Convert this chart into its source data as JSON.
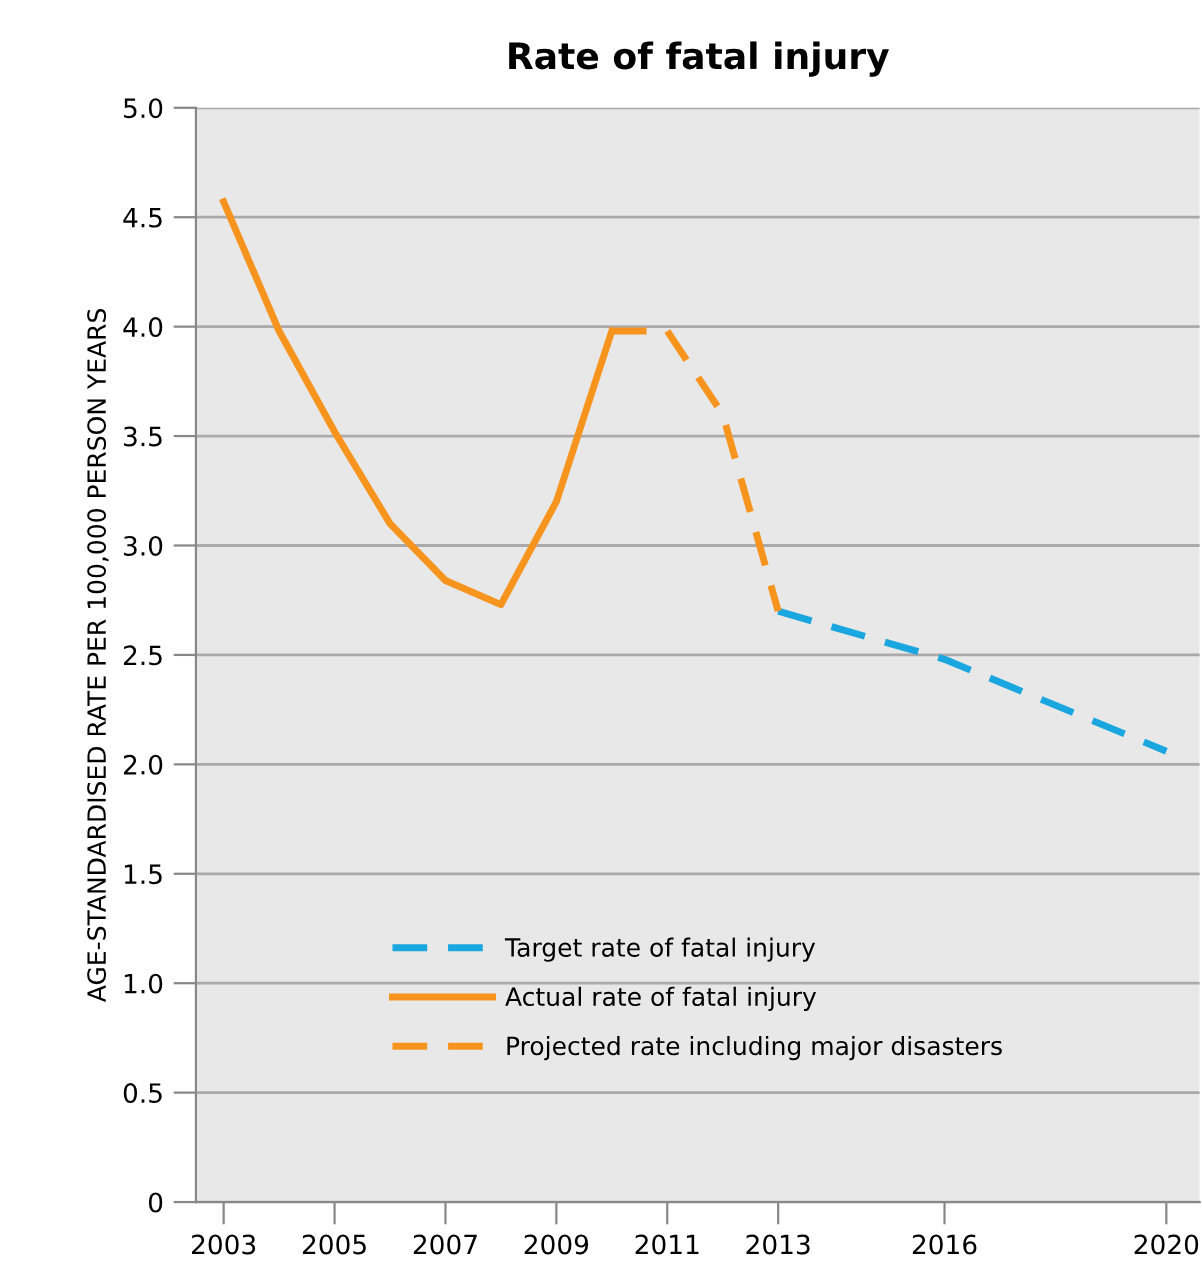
{
  "chart_data": {
    "type": "line",
    "title": "Rate of fatal injury",
    "ylabel": "AGE-STANDARDISED RATE PER 100,000 PERSON YEARS",
    "xlim": [
      2002.5,
      2020.6
    ],
    "xticks": [
      2003,
      2005,
      2007,
      2009,
      2011,
      2013,
      2016,
      2020
    ],
    "ylim": [
      0,
      5
    ],
    "yticks": [
      {
        "value": 0,
        "label": "0"
      },
      {
        "value": 0.5,
        "label": "0.5"
      },
      {
        "value": 1,
        "label": "1.0"
      },
      {
        "value": 1.5,
        "label": "1.5"
      },
      {
        "value": 2,
        "label": "2.0"
      },
      {
        "value": 2.5,
        "label": "2.5"
      },
      {
        "value": 3,
        "label": "3.0"
      },
      {
        "value": 3.5,
        "label": "3.5"
      },
      {
        "value": 4,
        "label": "4.0"
      },
      {
        "value": 4.5,
        "label": "4.5"
      },
      {
        "value": 5,
        "label": "5.0"
      }
    ],
    "grid": "y",
    "legend": "bottom",
    "series": [
      {
        "name": "Target rate of fatal injury",
        "color": "#1aa7e0",
        "line_style": "dashed",
        "x": [
          2013,
          2016,
          2020
        ],
        "values": [
          2.7,
          2.48,
          2.06
        ]
      },
      {
        "name": "Actual rate of fatal injury",
        "color": "#f7941d",
        "line_style": "solid",
        "x": [
          2003,
          2004,
          2005,
          2006,
          2007,
          2008,
          2009,
          2010
        ],
        "values": [
          4.57,
          3.98,
          3.52,
          3.1,
          2.84,
          2.73,
          3.2,
          3.98
        ]
      },
      {
        "name": "Projected rate including major disasters",
        "color": "#f7941d",
        "line_style": "dashed",
        "x": [
          2010,
          2011,
          2012,
          2013
        ],
        "values": [
          3.98,
          3.98,
          3.6,
          2.7
        ]
      }
    ]
  }
}
